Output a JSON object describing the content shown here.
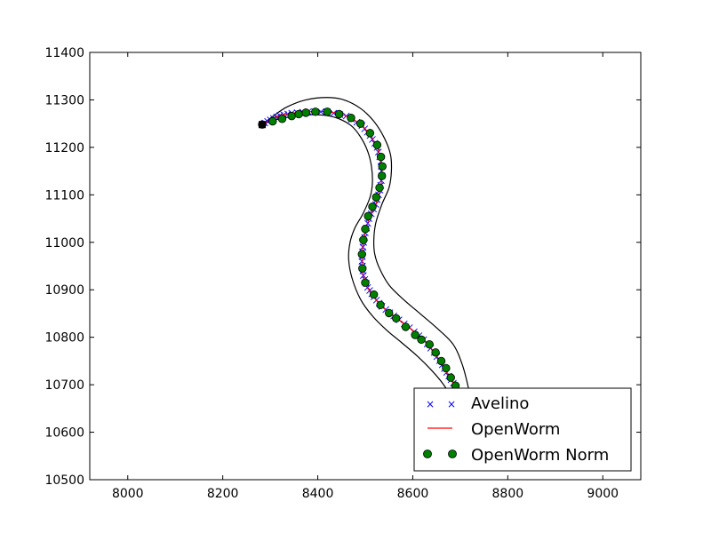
{
  "chart_data": {
    "type": "line",
    "title": "",
    "xlabel": "",
    "ylabel": "",
    "xlim": [
      7920,
      9080
    ],
    "ylim": [
      10500,
      11400
    ],
    "grid": false,
    "legend_placement": "lower-right",
    "x_ticks": [
      "8000",
      "8200",
      "8400",
      "8600",
      "8800",
      "9000"
    ],
    "y_ticks": [
      "10500",
      "10600",
      "10700",
      "10800",
      "10900",
      "11000",
      "11100",
      "11200",
      "11300",
      "11400"
    ],
    "series": [
      {
        "name": "Avelino",
        "marker": "x",
        "line": "none",
        "color": "#0000ff",
        "x": [
          8283,
          8300,
          8320,
          8345,
          8380,
          8420,
          8460,
          8493,
          8510,
          8525,
          8533,
          8535,
          8531,
          8522,
          8508,
          8500,
          8495,
          8493,
          8496,
          8505,
          8518,
          8535,
          8560,
          8593,
          8623,
          8645,
          8662,
          8676,
          8690
        ],
        "y": [
          11248,
          11258,
          11267,
          11272,
          11275,
          11275,
          11266,
          11246,
          11225,
          11200,
          11170,
          11140,
          11110,
          11080,
          11050,
          11020,
          10990,
          10960,
          10930,
          10905,
          10885,
          10865,
          10845,
          10820,
          10795,
          10768,
          10742,
          10718,
          10696
        ]
      },
      {
        "name": "OpenWorm",
        "marker": "none",
        "line": "solid",
        "color": "#ff0000",
        "x": [
          8283,
          8300,
          8320,
          8345,
          8380,
          8420,
          8460,
          8493,
          8510,
          8525,
          8533,
          8535,
          8531,
          8522,
          8508,
          8500,
          8495,
          8493,
          8496,
          8505,
          8518,
          8535,
          8560,
          8593,
          8623,
          8645,
          8662,
          8676,
          8690
        ],
        "y": [
          11248,
          11258,
          11267,
          11272,
          11275,
          11275,
          11266,
          11246,
          11225,
          11200,
          11170,
          11140,
          11110,
          11080,
          11050,
          11020,
          10990,
          10960,
          10930,
          10905,
          10885,
          10865,
          10845,
          10820,
          10795,
          10768,
          10742,
          10718,
          10696
        ]
      },
      {
        "name": "OpenWorm Norm",
        "marker": "o",
        "line": "none",
        "color": "#008000",
        "x": [
          8283,
          8305,
          8325,
          8345,
          8360,
          8375,
          8395,
          8420,
          8445,
          8470,
          8490,
          8510,
          8525,
          8533,
          8536,
          8535,
          8530,
          8523,
          8515,
          8506,
          8500,
          8496,
          8493,
          8494,
          8500,
          8518,
          8532,
          8550,
          8565,
          8585,
          8605,
          8618,
          8635,
          8648,
          8660,
          8670,
          8680,
          8690
        ],
        "y": [
          11248,
          11255,
          11260,
          11266,
          11270,
          11273,
          11275,
          11275,
          11270,
          11262,
          11250,
          11230,
          11205,
          11180,
          11160,
          11140,
          11115,
          11095,
          11075,
          11055,
          11028,
          11005,
          10975,
          10945,
          10915,
          10890,
          10868,
          10851,
          10840,
          10822,
          10805,
          10795,
          10785,
          10768,
          10750,
          10735,
          10715,
          10698
        ]
      }
    ],
    "worm_outline": {
      "color": "#000000",
      "upper": {
        "x": [
          8283,
          8300,
          8330,
          8370,
          8410,
          8440,
          8470,
          8490,
          8505,
          8513,
          8515,
          8510,
          8495,
          8478,
          8468,
          8465,
          8472,
          8490,
          8515,
          8545,
          8575,
          8610,
          8640,
          8665,
          8690
        ],
        "y": [
          11248,
          11255,
          11262,
          11268,
          11268,
          11262,
          11246,
          11222,
          11192,
          11160,
          11125,
          11095,
          11060,
          11030,
          11000,
          10965,
          10925,
          10880,
          10845,
          10815,
          10790,
          10760,
          10730,
          10700,
          10660
        ]
      },
      "lower": {
        "x": [
          8283,
          8305,
          8335,
          8375,
          8420,
          8455,
          8490,
          8518,
          8540,
          8553,
          8555,
          8550,
          8535,
          8522,
          8518,
          8520,
          8530,
          8550,
          8580,
          8615,
          8650,
          8685,
          8705,
          8718
        ],
        "y": [
          11248,
          11265,
          11285,
          11300,
          11305,
          11300,
          11282,
          11255,
          11220,
          11185,
          11150,
          11115,
          11080,
          11040,
          11005,
          10975,
          10945,
          10910,
          10880,
          10850,
          10820,
          10785,
          10740,
          10690
        ]
      }
    }
  }
}
